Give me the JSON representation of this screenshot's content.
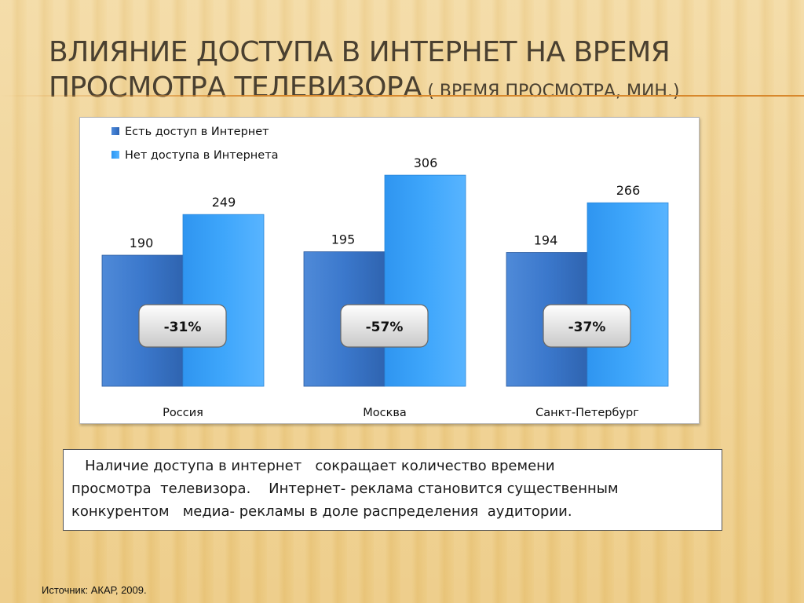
{
  "slide": {
    "title_line1": "Влияние доступа в Интернет на  время",
    "title_line2": "просмотра  телевизора",
    "title_sub": " ( время просмотра, мин.)"
  },
  "chart_data": {
    "type": "bar",
    "categories": [
      "Россия",
      "Москва",
      "Санкт-Петербург"
    ],
    "series": [
      {
        "name": "Есть доступ в Интернет",
        "values": [
          190,
          195,
          194
        ],
        "color": "#3b7bd0"
      },
      {
        "name": "Нет доступа в Интернета",
        "values": [
          249,
          306,
          266
        ],
        "color": "#3aa2f8"
      }
    ],
    "ylim": [
      0,
      330
    ],
    "grid": false,
    "legend": "top-left",
    "annotations": [
      "-31%",
      "-57%",
      "-37%"
    ]
  },
  "note": {
    "text": "   Наличие доступа в интернет   сокращает количество времени\nпросмотра  телевизора.    Интернет- реклама становится существенным\nконкурентом   медиа- рекламы в доле распределения  аудитории."
  },
  "source": "Источник:  АКАР, 2009.",
  "colors": {
    "accent_rule": "#d8882c",
    "title_text": "#4a4030"
  }
}
